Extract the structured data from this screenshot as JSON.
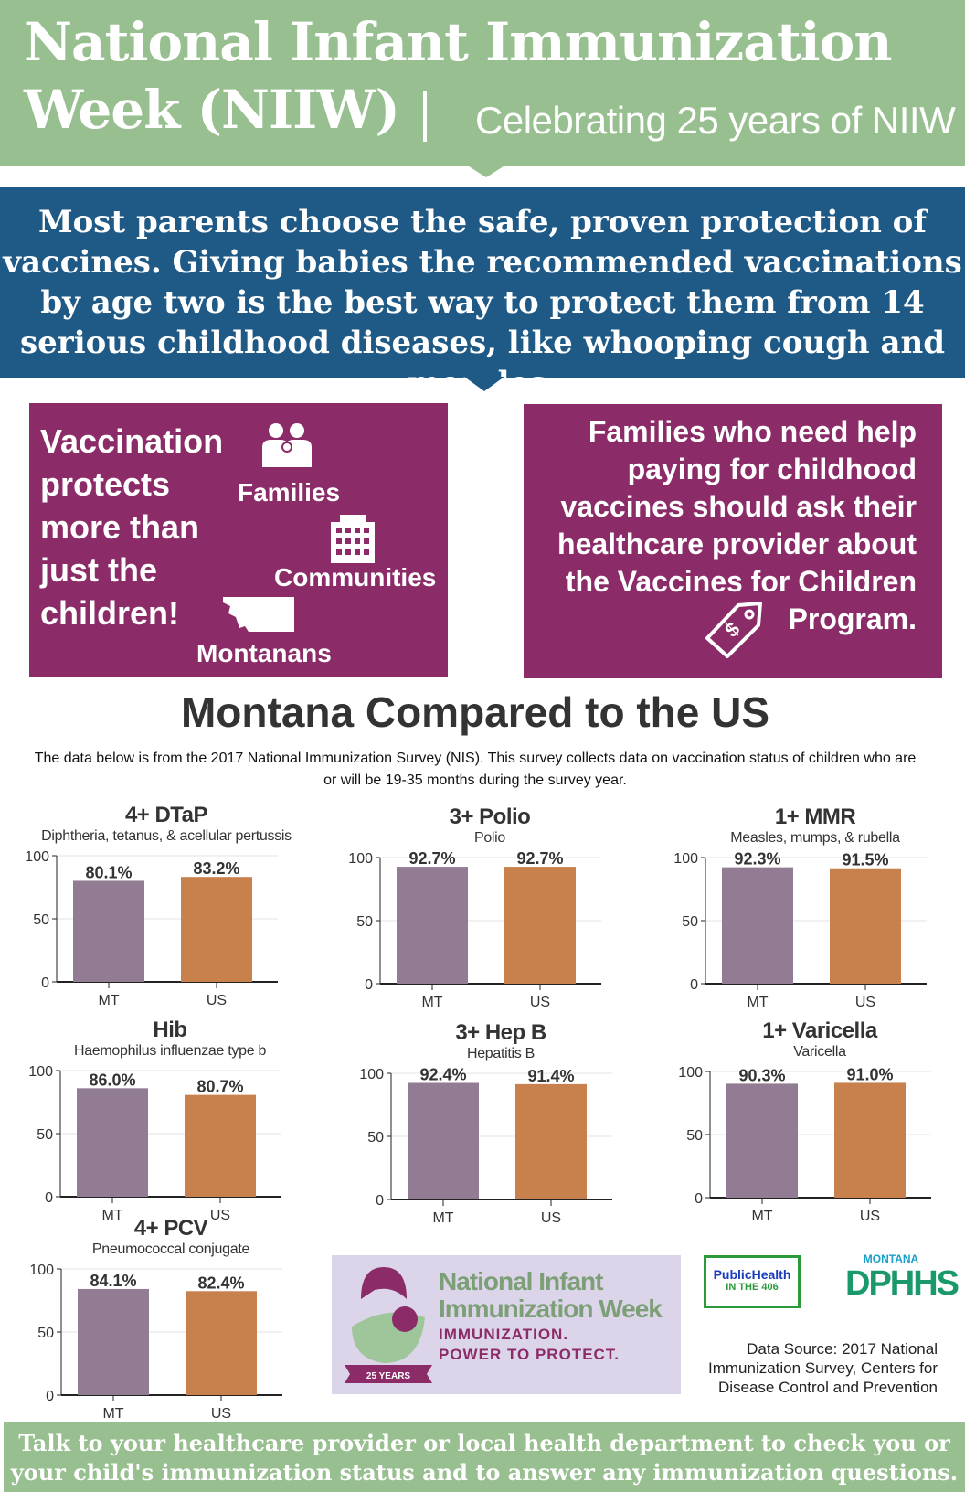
{
  "header": {
    "title_line1": "National Infant Immunization",
    "title_line2": "Week (NIIW)",
    "subtitle": "Celebrating 25 years of NIIW"
  },
  "intro": "Most parents choose the safe, proven protection of vaccines. Giving babies the recommended vaccinations by age two is the best way to protect them from 14 serious childhood diseases, like whooping cough and measles.",
  "protects": {
    "lines": [
      "Vaccination",
      "protects",
      "more than",
      "just the",
      "children!"
    ],
    "families": "Families",
    "communities": "Communities",
    "montanans": "Montanans"
  },
  "vfc": {
    "lines": [
      "Families who need help",
      "paying for childhood",
      "vaccines should ask their",
      "healthcare provider about",
      "the Vaccines for Children",
      "Program."
    ]
  },
  "comparison": {
    "title": "Montana Compared to the US",
    "description": "The data below is from the 2017 National Immunization Survey (NIS). This survey collects data on vaccination status of children who are or will be 19-35 months during the survey year."
  },
  "colors": {
    "mt": "#927c93",
    "us": "#c8814c",
    "green": "#98bf8f",
    "blue": "#1f5a87",
    "purple": "#8b2c69"
  },
  "chart_data": [
    {
      "type": "bar",
      "title": "4+ DTaP",
      "subtitle": "Diphtheria, tetanus, & acellular pertussis",
      "categories": [
        "MT",
        "US"
      ],
      "values": [
        80.1,
        83.2
      ],
      "labels": [
        "80.1%",
        "83.2%"
      ],
      "ylim": [
        0,
        100
      ],
      "yticks": [
        "0",
        "50",
        "100"
      ]
    },
    {
      "type": "bar",
      "title": "3+ Polio",
      "subtitle": "Polio",
      "categories": [
        "MT",
        "US"
      ],
      "values": [
        92.7,
        92.7
      ],
      "labels": [
        "92.7%",
        "92.7%"
      ],
      "ylim": [
        0,
        100
      ],
      "yticks": [
        "0",
        "50",
        "100"
      ]
    },
    {
      "type": "bar",
      "title": "1+ MMR",
      "subtitle": "Measles, mumps, & rubella",
      "categories": [
        "MT",
        "US"
      ],
      "values": [
        92.3,
        91.5
      ],
      "labels": [
        "92.3%",
        "91.5%"
      ],
      "ylim": [
        0,
        100
      ],
      "yticks": [
        "0",
        "50",
        "100"
      ]
    },
    {
      "type": "bar",
      "title": "Hib",
      "subtitle": "Haemophilus influenzae type b",
      "categories": [
        "MT",
        "US"
      ],
      "values": [
        86.0,
        80.7
      ],
      "labels": [
        "86.0%",
        "80.7%"
      ],
      "ylim": [
        0,
        100
      ],
      "yticks": [
        "0",
        "50",
        "100"
      ]
    },
    {
      "type": "bar",
      "title": "3+ Hep B",
      "subtitle": "Hepatitis B",
      "categories": [
        "MT",
        "US"
      ],
      "values": [
        92.4,
        91.4
      ],
      "labels": [
        "92.4%",
        "91.4%"
      ],
      "ylim": [
        0,
        100
      ],
      "yticks": [
        "0",
        "50",
        "100"
      ]
    },
    {
      "type": "bar",
      "title": "1+ Varicella",
      "subtitle": "Varicella",
      "categories": [
        "MT",
        "US"
      ],
      "values": [
        90.3,
        91.0
      ],
      "labels": [
        "90.3%",
        "91.0%"
      ],
      "ylim": [
        0,
        100
      ],
      "yticks": [
        "0",
        "50",
        "100"
      ]
    },
    {
      "type": "bar",
      "title": "4+ PCV",
      "subtitle": "Pneumococcal conjugate",
      "categories": [
        "MT",
        "US"
      ],
      "values": [
        84.1,
        82.4
      ],
      "labels": [
        "84.1%",
        "82.4%"
      ],
      "ylim": [
        0,
        100
      ],
      "yticks": [
        "0",
        "50",
        "100"
      ]
    }
  ],
  "logo": {
    "title1": "National Infant",
    "title2": "Immunization Week",
    "tag1": "IMMUNIZATION.",
    "tag2": "POWER TO PROTECT.",
    "badge": "25 YEARS"
  },
  "partners": {
    "ph1": "PublicHealth",
    "ph2": "IN THE 406",
    "dphhs_top": "MONTANA",
    "dphhs": "DPHHS"
  },
  "source": "Data Source: 2017 National Immunization Survey, Centers for Disease Control and Prevention",
  "footer": "Talk to your healthcare provider or local health department to check you or your child's immunization status and to answer any immunization questions."
}
